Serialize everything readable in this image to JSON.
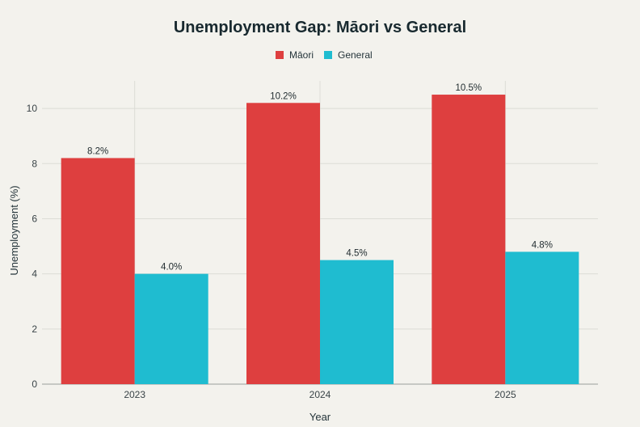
{
  "chart_data": {
    "type": "bar",
    "title": "Unemployment Gap: Māori vs General",
    "xlabel": "Year",
    "ylabel": "Unemployment (%)",
    "categories": [
      "2023",
      "2024",
      "2025"
    ],
    "series": [
      {
        "name": "Māori",
        "color": "#de3f3f",
        "values": [
          8.2,
          10.2,
          10.5
        ],
        "labels": [
          "8.2%",
          "10.2%",
          "10.5%"
        ]
      },
      {
        "name": "General",
        "color": "#1fbcd0",
        "values": [
          4.0,
          4.5,
          4.8
        ],
        "labels": [
          "4.0%",
          "4.5%",
          "4.8%"
        ]
      }
    ],
    "ylim": [
      0,
      11
    ],
    "yticks": [
      0,
      2,
      4,
      6,
      8,
      10
    ],
    "grid": true,
    "legend_position": "top-center"
  }
}
